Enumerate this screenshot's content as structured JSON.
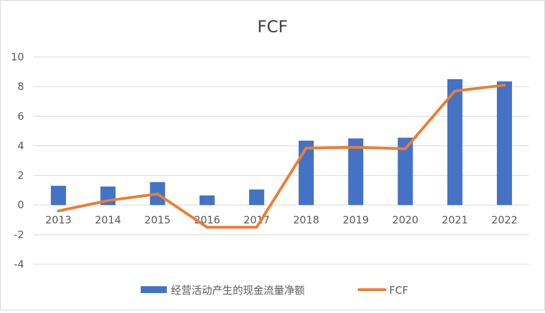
{
  "chart_data": {
    "type": "bar",
    "title": "FCF",
    "xlabel": "",
    "ylabel": "",
    "categories": [
      "2013",
      "2014",
      "2015",
      "2016",
      "2017",
      "2018",
      "2019",
      "2020",
      "2021",
      "2022"
    ],
    "ylim": [
      -4,
      10
    ],
    "yticks": [
      -4,
      -2,
      0,
      2,
      4,
      6,
      8,
      10
    ],
    "grid": true,
    "legend_position": "bottom",
    "series": [
      {
        "name": "经营活动产生的现金流量净额",
        "type": "bar",
        "color": "#4472C4",
        "values": [
          1.3,
          1.25,
          1.55,
          0.65,
          1.05,
          4.35,
          4.5,
          4.55,
          8.5,
          8.35
        ]
      },
      {
        "name": "FCF",
        "type": "line",
        "color": "#ED7D31",
        "values": [
          -0.4,
          0.3,
          0.75,
          -1.5,
          -1.5,
          3.85,
          3.9,
          3.8,
          7.7,
          8.1
        ]
      }
    ]
  }
}
